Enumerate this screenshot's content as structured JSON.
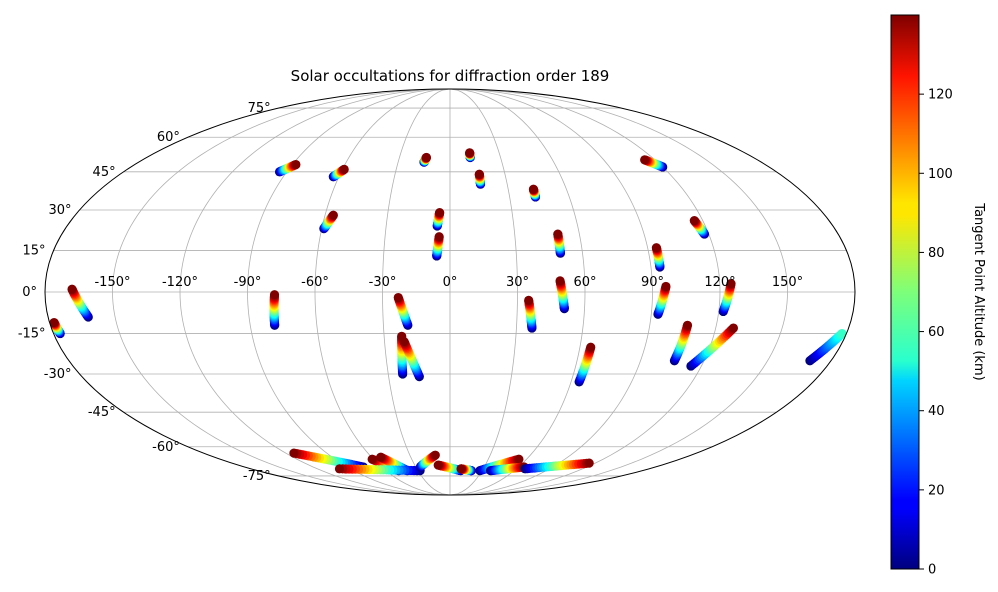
{
  "chart_data": {
    "type": "scatter",
    "projection": "mollweide",
    "title": "Solar occultations for diffraction order 189",
    "grid": true,
    "lon_ticks": [
      -150,
      -120,
      -90,
      -60,
      -30,
      0,
      30,
      60,
      90,
      120,
      150
    ],
    "lon_tick_labels": [
      "-150°",
      "-120°",
      "-90°",
      "-60°",
      "-30°",
      "0°",
      "30°",
      "60°",
      "90°",
      "120°",
      "150°"
    ],
    "lat_ticks": [
      75,
      60,
      45,
      30,
      15,
      0,
      -15,
      -30,
      -45,
      -60,
      -75
    ],
    "lat_tick_labels": [
      "75°",
      "60°",
      "45°",
      "30°",
      "15°",
      "0°",
      "-15°",
      "-30°",
      "-45°",
      "-60°",
      "-75°"
    ],
    "colorbar": {
      "label": "Tangent Point Altitude (km)",
      "range": [
        0,
        140
      ],
      "ticks": [
        0,
        20,
        40,
        60,
        80,
        100,
        120
      ],
      "tick_labels": [
        "0",
        "20",
        "40",
        "60",
        "80",
        "100",
        "120"
      ],
      "colormap": "jet"
    },
    "tracks": [
      {
        "lon_start": -94,
        "lat_start": 45,
        "lon_end": -88,
        "lat_end": 48,
        "alt_start": 0,
        "alt_end": 140
      },
      {
        "lon_start": -63,
        "lat_start": 43,
        "lon_end": -59,
        "lat_end": 46,
        "alt_start": 0,
        "alt_end": 140
      },
      {
        "lon_start": -15,
        "lat_start": 49,
        "lon_end": -14,
        "lat_end": 51,
        "alt_start": 0,
        "alt_end": 140
      },
      {
        "lon_start": 12,
        "lat_start": 51,
        "lon_end": 12,
        "lat_end": 53,
        "alt_start": 0,
        "alt_end": 140
      },
      {
        "lon_start": 16,
        "lat_start": 40,
        "lon_end": 16,
        "lat_end": 44,
        "alt_start": 0,
        "alt_end": 140
      },
      {
        "lon_start": 43,
        "lat_start": 35,
        "lon_end": 43,
        "lat_end": 38,
        "alt_start": 0,
        "alt_end": 140
      },
      {
        "lon_start": 120,
        "lat_start": 47,
        "lon_end": 114,
        "lat_end": 50,
        "alt_start": 0,
        "alt_end": 140
      },
      {
        "lon_start": -59,
        "lat_start": 23,
        "lon_end": -56,
        "lat_end": 28,
        "alt_start": 0,
        "alt_end": 140
      },
      {
        "lon_start": -6,
        "lat_start": 24,
        "lon_end": -5,
        "lat_end": 29,
        "alt_start": 0,
        "alt_end": 140
      },
      {
        "lon_start": -6,
        "lat_start": 13,
        "lon_end": -5,
        "lat_end": 20,
        "alt_start": 0,
        "alt_end": 140
      },
      {
        "lon_start": 50,
        "lat_start": 14,
        "lon_end": 50,
        "lat_end": 21,
        "alt_start": 0,
        "alt_end": 140
      },
      {
        "lon_start": 94,
        "lat_start": 9,
        "lon_end": 94,
        "lat_end": 16,
        "alt_start": 0,
        "alt_end": 140
      },
      {
        "lon_start": 118,
        "lat_start": 21,
        "lon_end": 116,
        "lat_end": 26,
        "alt_start": 0,
        "alt_end": 140
      },
      {
        "lon_start": -162,
        "lat_start": -9,
        "lon_end": -168,
        "lat_end": 1,
        "alt_start": 0,
        "alt_end": 140
      },
      {
        "lon_start": -177,
        "lat_start": -15,
        "lon_end": -178,
        "lat_end": -11,
        "alt_start": 0,
        "alt_end": 140
      },
      {
        "lon_start": -79,
        "lat_start": -12,
        "lon_end": -78,
        "lat_end": -1,
        "alt_start": 0,
        "alt_end": 140
      },
      {
        "lon_start": -19,
        "lat_start": -12,
        "lon_end": -23,
        "lat_end": -2,
        "alt_start": 0,
        "alt_end": 140
      },
      {
        "lon_start": -23,
        "lat_start": -30,
        "lon_end": -22,
        "lat_end": -16,
        "alt_start": 0,
        "alt_end": 140
      },
      {
        "lon_start": -15,
        "lat_start": -31,
        "lon_end": -21,
        "lat_end": -18,
        "alt_start": 0,
        "alt_end": 140
      },
      {
        "lon_start": 37,
        "lat_start": -13,
        "lon_end": 35,
        "lat_end": -3,
        "alt_start": 0,
        "alt_end": 140
      },
      {
        "lon_start": 51,
        "lat_start": -6,
        "lon_end": 49,
        "lat_end": 4,
        "alt_start": 0,
        "alt_end": 140
      },
      {
        "lon_start": 64,
        "lat_start": -33,
        "lon_end": 65,
        "lat_end": -20,
        "alt_start": 0,
        "alt_end": 140
      },
      {
        "lon_start": 93,
        "lat_start": -8,
        "lon_end": 96,
        "lat_end": 2,
        "alt_start": 0,
        "alt_end": 140
      },
      {
        "lon_start": 122,
        "lat_start": -7,
        "lon_end": 125,
        "lat_end": 3,
        "alt_start": 0,
        "alt_end": 140
      },
      {
        "lon_start": 106,
        "lat_start": -25,
        "lon_end": 107,
        "lat_end": -12,
        "alt_start": 0,
        "alt_end": 140
      },
      {
        "lon_start": 115,
        "lat_start": -27,
        "lon_end": 128,
        "lat_end": -13,
        "alt_start": 0,
        "alt_end": 140
      },
      {
        "lon_start": 170,
        "lat_start": -25,
        "lon_end": 178,
        "lat_end": -15,
        "alt_start": 0,
        "alt_end": 60
      },
      {
        "lon_start": -76,
        "lat_start": -70,
        "lon_end": -114,
        "lat_end": -63,
        "alt_start": 0,
        "alt_end": 140
      },
      {
        "lon_start": -48,
        "lat_start": -72,
        "lon_end": -61,
        "lat_end": -66,
        "alt_start": 0,
        "alt_end": 140
      },
      {
        "lon_start": -40,
        "lat_start": -72,
        "lon_end": -53,
        "lat_end": -65,
        "alt_start": 0,
        "alt_end": 140
      },
      {
        "lon_start": -28,
        "lat_start": -72,
        "lon_end": -100,
        "lat_end": -71,
        "alt_start": 0,
        "alt_end": 140
      },
      {
        "lon_start": -26,
        "lat_start": -70,
        "lon_end": -11,
        "lat_end": -64,
        "alt_start": 0,
        "alt_end": 140
      },
      {
        "lon_start": 10,
        "lat_start": -72,
        "lon_end": -10,
        "lat_end": -69,
        "alt_start": 0,
        "alt_end": 140
      },
      {
        "lon_start": 20,
        "lat_start": -72,
        "lon_end": 10,
        "lat_end": -71,
        "alt_start": 0,
        "alt_end": 140
      },
      {
        "lon_start": 28,
        "lat_start": -72,
        "lon_end": 54,
        "lat_end": -66,
        "alt_start": 0,
        "alt_end": 140
      },
      {
        "lon_start": 38,
        "lat_start": -72,
        "lon_end": 65,
        "lat_end": -70,
        "alt_start": 0,
        "alt_end": 140
      },
      {
        "lon_start": 68,
        "lat_start": -71,
        "lon_end": 115,
        "lat_end": -68,
        "alt_start": 0,
        "alt_end": 140
      }
    ]
  }
}
